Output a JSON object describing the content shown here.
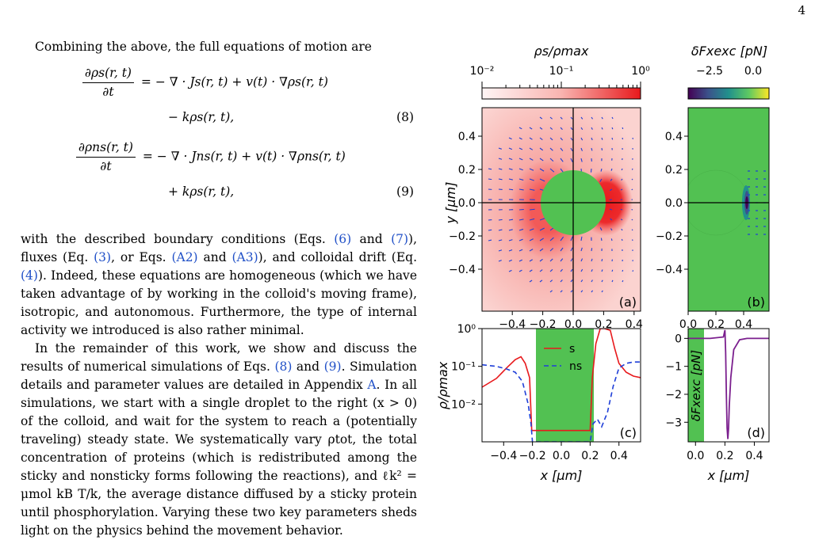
{
  "page_number": "4",
  "intro": "Combining the above, the full equations of motion are",
  "eq8": {
    "lhs_num": "∂ρs(r, t)",
    "lhs_den": "∂t",
    "rhs1": "= − ∇ · Js(r, t) + v(t) · ∇ρs(r, t)",
    "rhs2": "− kρs(r, t),",
    "number": "(8)"
  },
  "eq9": {
    "lhs_num": "∂ρns(r, t)",
    "lhs_den": "∂t",
    "rhs1": "= − ∇ · Jns(r, t) + v(t) · ∇ρns(r, t)",
    "rhs2": "+ kρs(r, t),",
    "number": "(9)"
  },
  "para1": {
    "t1": "with the described boundary conditions (Eqs. ",
    "r1": "(6)",
    "t2": " and ",
    "r2": "(7)",
    "t3": "), fluxes (Eq. ",
    "r3": "(3)",
    "t4": ", or Eqs. ",
    "r4": "(A2)",
    "t5": " and ",
    "r5": "(A3)",
    "t6": "), and colloidal drift (Eq. ",
    "r6": "(4)",
    "t7": "). Indeed, these equations are homogeneous (which we have taken advantage of by working in the colloid's moving frame), isotropic, and autonomous. Furthermore, the type of internal activity we introduced is also rather minimal."
  },
  "para2": {
    "t1": "In the remainder of this work, we show and discuss the results of numerical simulations of Eqs. ",
    "r1": "(8)",
    "t2": " and ",
    "r2": "(9)",
    "t3": ". Simulation details and parameter values are detailed in Appendix ",
    "r3": "A",
    "t4": ". In all simulations, we start with a single droplet to the right (x > 0) of the colloid, and wait for the system to reach a (potentially traveling) steady state. We systematically vary ρtot, the total concentration of proteins (which is redistributed among the sticky and nonsticky forms following the reactions), and ℓk² = μmol kB T/k, the average distance diffused by a sticky protein until phosphorylation. Varying these two key parameters sheds light on the physics behind the movement behavior."
  },
  "figure": {
    "colorbar_a_label": "ρs/ρmax",
    "colorbar_a_ticks": [
      "10⁻²",
      "10⁻¹",
      "10⁰"
    ],
    "colorbar_b_label": "δFxexc [pN]",
    "colorbar_b_ticks": [
      "−2.5",
      "0.0"
    ],
    "panel_labels": [
      "(a)",
      "(b)",
      "(c)",
      "(d)"
    ],
    "ylabel_top": "y [μm]",
    "xlabel": "x [μm]",
    "ylabel_c": "ρ/ρmax",
    "ylabel_d": "δFxexc [pN]",
    "ticks_xy_a": [
      "−0.4",
      "−0.2",
      "0.0",
      "0.2",
      "0.4"
    ],
    "ticks_y_top": [
      "0.4",
      "0.2",
      "0.0",
      "−0.2",
      "−0.4"
    ],
    "ticks_x_b": [
      "0.0",
      "0.2",
      "0.4"
    ],
    "ticks_y_c": [
      "10⁰",
      "10⁻¹",
      "10⁻²"
    ],
    "ticks_y_d": [
      "0",
      "−1",
      "−2",
      "−3"
    ],
    "legend": [
      "s",
      "ns"
    ],
    "colors": {
      "s": "#e8191c",
      "ns": "#1f3fd8",
      "colloid": "#52c152",
      "force": "#7b1f8e",
      "density_max": "#e8191c",
      "density_min": "#fff5f5"
    }
  },
  "chart_data": [
    {
      "type": "line",
      "panel": "(c)",
      "ylabel": "ρ/ρmax",
      "xlabel": "x [μm]",
      "xlim": [
        -0.55,
        0.55
      ],
      "ylim": [
        0.001,
        1
      ],
      "yscale": "log",
      "series": [
        {
          "name": "s",
          "x": [
            -0.55,
            -0.45,
            -0.38,
            -0.32,
            -0.28,
            -0.25,
            -0.22,
            -0.205,
            0.2,
            0.215,
            0.24,
            0.27,
            0.3,
            0.34,
            0.37,
            0.4,
            0.45,
            0.5,
            0.55
          ],
          "values": [
            0.028,
            0.048,
            0.09,
            0.15,
            0.18,
            0.12,
            0.05,
            0.002,
            0.002,
            0.05,
            0.4,
            1.0,
            1.0,
            0.9,
            0.3,
            0.12,
            0.07,
            0.055,
            0.05
          ]
        },
        {
          "name": "ns",
          "x": [
            -0.55,
            -0.45,
            -0.38,
            -0.32,
            -0.27,
            -0.23,
            -0.21,
            -0.2,
            0.2,
            0.22,
            0.25,
            0.28,
            0.32,
            0.36,
            0.4,
            0.45,
            0.5,
            0.55
          ],
          "values": [
            0.11,
            0.1,
            0.085,
            0.07,
            0.04,
            0.01,
            0.003,
            0.001,
            0.001,
            0.003,
            0.004,
            0.0025,
            0.006,
            0.03,
            0.09,
            0.12,
            0.13,
            0.13
          ]
        }
      ]
    },
    {
      "type": "line",
      "panel": "(d)",
      "ylabel": "δFxexc [pN]",
      "xlabel": "x [μm]",
      "xlim": [
        -0.05,
        0.5
      ],
      "ylim": [
        -3.7,
        0.35
      ],
      "series": [
        {
          "x": [
            -0.05,
            0.0,
            0.1,
            0.19,
            0.2,
            0.205,
            0.21,
            0.215,
            0.22,
            0.225,
            0.23,
            0.24,
            0.26,
            0.3,
            0.35,
            0.4,
            0.45,
            0.5
          ],
          "values": [
            0.0,
            0.0,
            0.0,
            0.05,
            0.3,
            -0.5,
            -2.0,
            -3.2,
            -3.6,
            -3.2,
            -2.4,
            -1.4,
            -0.4,
            -0.05,
            0.0,
            0.0,
            0.0,
            0.0
          ]
        }
      ]
    }
  ]
}
